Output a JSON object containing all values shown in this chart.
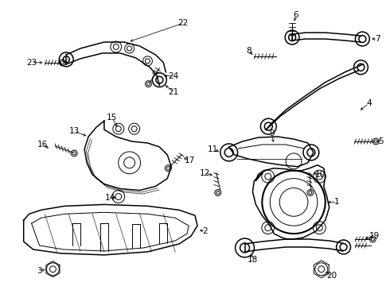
{
  "background_color": "#ffffff",
  "line_color": "#000000",
  "text_color": "#000000",
  "fig_width": 4.9,
  "fig_height": 3.6,
  "dpi": 100
}
